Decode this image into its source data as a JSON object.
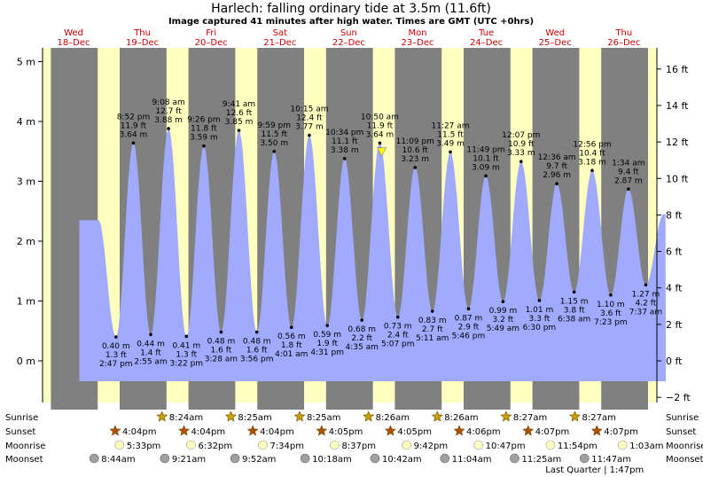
{
  "chart_data": {
    "type": "area",
    "title": "Harlech: falling  ordinary tide at 3.5m (11.6ft)",
    "subtitle": "Image captured 41 minutes after high water. Times are GMT (UTC +0hrs)",
    "days": [
      {
        "dow": "Wed",
        "date": "18–Dec"
      },
      {
        "dow": "Thu",
        "date": "19–Dec"
      },
      {
        "dow": "Fri",
        "date": "20–Dec"
      },
      {
        "dow": "Sat",
        "date": "21–Dec"
      },
      {
        "dow": "Sun",
        "date": "22–Dec"
      },
      {
        "dow": "Mon",
        "date": "23–Dec"
      },
      {
        "dow": "Tue",
        "date": "24–Dec"
      },
      {
        "dow": "Wed",
        "date": "25–Dec"
      },
      {
        "dow": "Thu",
        "date": "26–Dec"
      }
    ],
    "y_left": {
      "unit": "m",
      "range": [
        -0.5,
        5.2
      ],
      "ticks": [
        "0 m",
        "1 m",
        "2 m",
        "3 m",
        "4 m",
        "5 m"
      ]
    },
    "y_right": {
      "unit": "ft",
      "ticks": [
        "−2 ft",
        "0 ft",
        "2 ft",
        "4 ft",
        "6 ft",
        "8 ft",
        "10 ft",
        "12 ft",
        "14 ft",
        "16 ft"
      ]
    },
    "tides": [
      {
        "type": "low",
        "time": "2:47 pm",
        "m": "0.40 m",
        "ft": "1.3 ft",
        "val": 0.4
      },
      {
        "type": "high",
        "time": "8:52 pm",
        "m": "3.64 m",
        "ft": "11.9 ft",
        "val": 3.64
      },
      {
        "type": "low",
        "time": "2:55 am",
        "m": "0.44 m",
        "ft": "1.4 ft",
        "val": 0.44
      },
      {
        "type": "high",
        "time": "9:08 am",
        "m": "3.88 m",
        "ft": "12.7 ft",
        "val": 3.88
      },
      {
        "type": "low",
        "time": "3:22 pm",
        "m": "0.41 m",
        "ft": "1.3 ft",
        "val": 0.41
      },
      {
        "type": "high",
        "time": "9:26 pm",
        "m": "3.59 m",
        "ft": "11.8 ft",
        "val": 3.59
      },
      {
        "type": "low",
        "time": "3:28 am",
        "m": "0.48 m",
        "ft": "1.6 ft",
        "val": 0.48
      },
      {
        "type": "high",
        "time": "9:41 am",
        "m": "3.85 m",
        "ft": "12.6 ft",
        "val": 3.85
      },
      {
        "type": "low",
        "time": "3:56 pm",
        "m": "0.48 m",
        "ft": "1.6 ft",
        "val": 0.48
      },
      {
        "type": "high",
        "time": "9:59 pm",
        "m": "3.50 m",
        "ft": "11.5 ft",
        "val": 3.5
      },
      {
        "type": "low",
        "time": "4:01 am",
        "m": "0.56 m",
        "ft": "1.8 ft",
        "val": 0.56
      },
      {
        "type": "high",
        "time": "10:15 am",
        "m": "3.77 m",
        "ft": "12.4 ft",
        "val": 3.77
      },
      {
        "type": "low",
        "time": "4:31 pm",
        "m": "0.59 m",
        "ft": "1.9 ft",
        "val": 0.59
      },
      {
        "type": "high",
        "time": "10:34 pm",
        "m": "3.38 m",
        "ft": "11.1 ft",
        "val": 3.38
      },
      {
        "type": "low",
        "time": "4:35 am",
        "m": "0.68 m",
        "ft": "2.2 ft",
        "val": 0.68
      },
      {
        "type": "high",
        "time": "10:50 am",
        "m": "3.64 m",
        "ft": "11.9 ft",
        "val": 3.64
      },
      {
        "type": "low",
        "time": "5:07 pm",
        "m": "0.73 m",
        "ft": "2.4 ft",
        "val": 0.73
      },
      {
        "type": "high",
        "time": "11:09 pm",
        "m": "3.23 m",
        "ft": "10.6 ft",
        "val": 3.23
      },
      {
        "type": "low",
        "time": "5:11 am",
        "m": "0.83 m",
        "ft": "2.7 ft",
        "val": 0.83
      },
      {
        "type": "high",
        "time": "11:27 am",
        "m": "3.49 m",
        "ft": "11.5 ft",
        "val": 3.49
      },
      {
        "type": "low",
        "time": "5:46 pm",
        "m": "0.87 m",
        "ft": "2.9 ft",
        "val": 0.87
      },
      {
        "type": "high",
        "time": "11:49 pm",
        "m": "3.09 m",
        "ft": "10.1 ft",
        "val": 3.09
      },
      {
        "type": "low",
        "time": "5:49 am",
        "m": "0.99 m",
        "ft": "3.2 ft",
        "val": 0.99
      },
      {
        "type": "high",
        "time": "12:07 pm",
        "m": "3.33 m",
        "ft": "10.9 ft",
        "val": 3.33
      },
      {
        "type": "low",
        "time": "6:30 pm",
        "m": "1.01 m",
        "ft": "3.3 ft",
        "val": 1.01
      },
      {
        "type": "high",
        "time": "12:36 am",
        "m": "2.96 m",
        "ft": "9.7 ft",
        "val": 2.96
      },
      {
        "type": "low",
        "time": "6:38 am",
        "m": "1.15 m",
        "ft": "3.8 ft",
        "val": 1.15
      },
      {
        "type": "high",
        "time": "12:56 pm",
        "m": "3.18 m",
        "ft": "10.4 ft",
        "val": 3.18
      },
      {
        "type": "low",
        "time": "7:23 pm",
        "m": "1.10 m",
        "ft": "3.6 ft",
        "val": 1.1
      },
      {
        "type": "high",
        "time": "1:34 am",
        "m": "2.87 m",
        "ft": "9.4 ft",
        "val": 2.87
      },
      {
        "type": "low",
        "time": "7:37 am",
        "m": "1.27 m",
        "ft": "4.2 ft",
        "val": 1.27
      }
    ],
    "current_level_m": 3.5,
    "almanac": {
      "row_labels": [
        "Sunrise",
        "Sunset",
        "Moonrise",
        "Moonset"
      ],
      "sunrise": [
        "8:24am",
        "8:25am",
        "8:25am",
        "8:26am",
        "8:26am",
        "8:27am",
        "8:27am"
      ],
      "sunset": [
        "4:04pm",
        "4:04pm",
        "4:04pm",
        "4:05pm",
        "4:05pm",
        "4:06pm",
        "4:07pm",
        "4:07pm"
      ],
      "moonrise": [
        "5:33pm",
        "6:32pm",
        "7:34pm",
        "8:37pm",
        "9:42pm",
        "10:47pm",
        "11:54pm",
        "1:03am"
      ],
      "moonset": [
        "8:44am",
        "9:21am",
        "9:52am",
        "10:18am",
        "10:42am",
        "11:04am",
        "11:25am",
        "11:47am"
      ],
      "moon_phase": "Last Quarter | 1:47pm"
    },
    "colors": {
      "tide": "#a0aaff",
      "day_bg": "#ffffc0",
      "night_bg": "#808080",
      "day_label": "#cc0000",
      "sun": "#c8a000",
      "sunset": "#b05000",
      "moonrise": "#ffffc0",
      "moonset": "#a0a0a0",
      "marker": "#ffff00"
    }
  }
}
